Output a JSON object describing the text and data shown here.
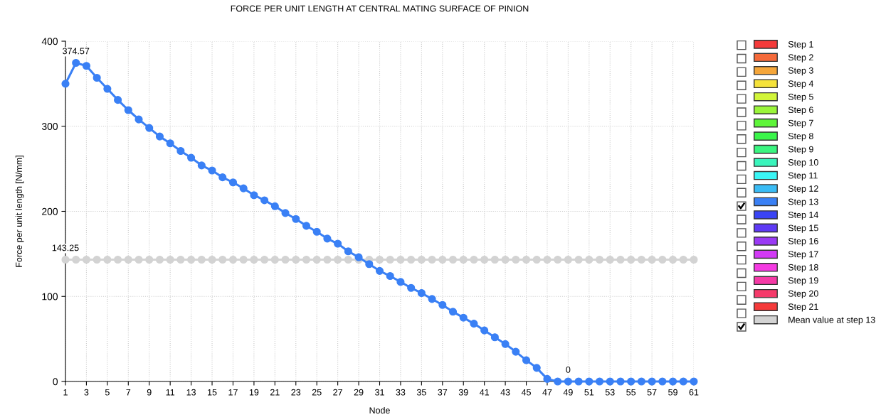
{
  "chart_data": {
    "type": "line",
    "title": "FORCE PER UNIT LENGTH AT CENTRAL MATING SURFACE OF PINION",
    "xlabel": "Node",
    "ylabel": "Force per unit length [N/mm]",
    "x": [
      1,
      2,
      3,
      4,
      5,
      6,
      7,
      8,
      9,
      10,
      11,
      12,
      13,
      14,
      15,
      16,
      17,
      18,
      19,
      20,
      21,
      22,
      23,
      24,
      25,
      26,
      27,
      28,
      29,
      30,
      31,
      32,
      33,
      34,
      35,
      36,
      37,
      38,
      39,
      40,
      41,
      42,
      43,
      44,
      45,
      46,
      47,
      48,
      49,
      50,
      51,
      52,
      53,
      54,
      55,
      56,
      57,
      58,
      59,
      60,
      61
    ],
    "series": [
      {
        "name": "Step 1",
        "color": "#f53a3a",
        "values": [
          null,
          null,
          null,
          null,
          null,
          null,
          null,
          null,
          null,
          null,
          null,
          null,
          null,
          null,
          null,
          null,
          null,
          null,
          null,
          null,
          null,
          null,
          null,
          null,
          null,
          null,
          null,
          null,
          null,
          null,
          null,
          null,
          null,
          null,
          null,
          null,
          null,
          null,
          null,
          null,
          null,
          null,
          null,
          null,
          null,
          null,
          null,
          null,
          null,
          null,
          null,
          null,
          null,
          null,
          null,
          null,
          null,
          null,
          null,
          null,
          null
        ]
      },
      {
        "name": "Step 2",
        "color": "#f56a3a",
        "values": [
          null,
          null,
          null,
          null,
          null,
          null,
          null,
          null,
          null,
          null,
          null,
          null,
          null,
          null,
          null,
          null,
          null,
          null,
          null,
          null,
          null,
          null,
          null,
          null,
          null,
          null,
          null,
          null,
          null,
          null,
          null,
          null,
          null,
          null,
          null,
          null,
          null,
          null,
          null,
          null,
          null,
          null,
          null,
          null,
          null,
          null,
          null,
          null,
          null,
          null,
          null,
          null,
          null,
          null,
          null,
          null,
          null,
          null,
          null,
          null,
          null
        ]
      },
      {
        "name": "Step 3",
        "color": "#f5a63a",
        "values": [
          null,
          null,
          null,
          null,
          null,
          null,
          null,
          null,
          null,
          null,
          null,
          null,
          null,
          null,
          null,
          null,
          null,
          null,
          null,
          null,
          null,
          null,
          null,
          null,
          null,
          null,
          null,
          null,
          null,
          null,
          null,
          null,
          null,
          null,
          null,
          null,
          null,
          null,
          null,
          null,
          null,
          null,
          null,
          null,
          null,
          null,
          null,
          null,
          null,
          null,
          null,
          null,
          null,
          null,
          null,
          null,
          null,
          null,
          null,
          null,
          null
        ]
      },
      {
        "name": "Step 4",
        "color": "#f5e23a",
        "values": [
          null,
          null,
          null,
          null,
          null,
          null,
          null,
          null,
          null,
          null,
          null,
          null,
          null,
          null,
          null,
          null,
          null,
          null,
          null,
          null,
          null,
          null,
          null,
          null,
          null,
          null,
          null,
          null,
          null,
          null,
          null,
          null,
          null,
          null,
          null,
          null,
          null,
          null,
          null,
          null,
          null,
          null,
          null,
          null,
          null,
          null,
          null,
          null,
          null,
          null,
          null,
          null,
          null,
          null,
          null,
          null,
          null,
          null,
          null,
          null,
          null
        ]
      },
      {
        "name": "Step 5",
        "color": "#d2f53a",
        "values": [
          null,
          null,
          null,
          null,
          null,
          null,
          null,
          null,
          null,
          null,
          null,
          null,
          null,
          null,
          null,
          null,
          null,
          null,
          null,
          null,
          null,
          null,
          null,
          null,
          null,
          null,
          null,
          null,
          null,
          null,
          null,
          null,
          null,
          null,
          null,
          null,
          null,
          null,
          null,
          null,
          null,
          null,
          null,
          null,
          null,
          null,
          null,
          null,
          null,
          null,
          null,
          null,
          null,
          null,
          null,
          null,
          null,
          null,
          null,
          null,
          null
        ]
      },
      {
        "name": "Step 6",
        "color": "#9af53a",
        "values": [
          null,
          null,
          null,
          null,
          null,
          null,
          null,
          null,
          null,
          null,
          null,
          null,
          null,
          null,
          null,
          null,
          null,
          null,
          null,
          null,
          null,
          null,
          null,
          null,
          null,
          null,
          null,
          null,
          null,
          null,
          null,
          null,
          null,
          null,
          null,
          null,
          null,
          null,
          null,
          null,
          null,
          null,
          null,
          null,
          null,
          null,
          null,
          null,
          null,
          null,
          null,
          null,
          null,
          null,
          null,
          null,
          null,
          null,
          null,
          null,
          null
        ]
      },
      {
        "name": "Step 7",
        "color": "#5ef53a",
        "values": [
          null,
          null,
          null,
          null,
          null,
          null,
          null,
          null,
          null,
          null,
          null,
          null,
          null,
          null,
          null,
          null,
          null,
          null,
          null,
          null,
          null,
          null,
          null,
          null,
          null,
          null,
          null,
          null,
          null,
          null,
          null,
          null,
          null,
          null,
          null,
          null,
          null,
          null,
          null,
          null,
          null,
          null,
          null,
          null,
          null,
          null,
          null,
          null,
          null,
          null,
          null,
          null,
          null,
          null,
          null,
          null,
          null,
          null,
          null,
          null,
          null
        ]
      },
      {
        "name": "Step 8",
        "color": "#3af54a",
        "values": [
          null,
          null,
          null,
          null,
          null,
          null,
          null,
          null,
          null,
          null,
          null,
          null,
          null,
          null,
          null,
          null,
          null,
          null,
          null,
          null,
          null,
          null,
          null,
          null,
          null,
          null,
          null,
          null,
          null,
          null,
          null,
          null,
          null,
          null,
          null,
          null,
          null,
          null,
          null,
          null,
          null,
          null,
          null,
          null,
          null,
          null,
          null,
          null,
          null,
          null,
          null,
          null,
          null,
          null,
          null,
          null,
          null,
          null,
          null,
          null,
          null
        ]
      },
      {
        "name": "Step 9",
        "color": "#3af580",
        "values": [
          null,
          null,
          null,
          null,
          null,
          null,
          null,
          null,
          null,
          null,
          null,
          null,
          null,
          null,
          null,
          null,
          null,
          null,
          null,
          null,
          null,
          null,
          null,
          null,
          null,
          null,
          null,
          null,
          null,
          null,
          null,
          null,
          null,
          null,
          null,
          null,
          null,
          null,
          null,
          null,
          null,
          null,
          null,
          null,
          null,
          null,
          null,
          null,
          null,
          null,
          null,
          null,
          null,
          null,
          null,
          null,
          null,
          null,
          null,
          null,
          null
        ]
      },
      {
        "name": "Step 10",
        "color": "#3af5bc",
        "values": [
          null,
          null,
          null,
          null,
          null,
          null,
          null,
          null,
          null,
          null,
          null,
          null,
          null,
          null,
          null,
          null,
          null,
          null,
          null,
          null,
          null,
          null,
          null,
          null,
          null,
          null,
          null,
          null,
          null,
          null,
          null,
          null,
          null,
          null,
          null,
          null,
          null,
          null,
          null,
          null,
          null,
          null,
          null,
          null,
          null,
          null,
          null,
          null,
          null,
          null,
          null,
          null,
          null,
          null,
          null,
          null,
          null,
          null,
          null,
          null,
          null
        ]
      },
      {
        "name": "Step 11",
        "color": "#3af5f5",
        "values": [
          null,
          null,
          null,
          null,
          null,
          null,
          null,
          null,
          null,
          null,
          null,
          null,
          null,
          null,
          null,
          null,
          null,
          null,
          null,
          null,
          null,
          null,
          null,
          null,
          null,
          null,
          null,
          null,
          null,
          null,
          null,
          null,
          null,
          null,
          null,
          null,
          null,
          null,
          null,
          null,
          null,
          null,
          null,
          null,
          null,
          null,
          null,
          null,
          null,
          null,
          null,
          null,
          null,
          null,
          null,
          null,
          null,
          null,
          null,
          null,
          null
        ]
      },
      {
        "name": "Step 12",
        "color": "#3abcf5",
        "values": [
          null,
          null,
          null,
          null,
          null,
          null,
          null,
          null,
          null,
          null,
          null,
          null,
          null,
          null,
          null,
          null,
          null,
          null,
          null,
          null,
          null,
          null,
          null,
          null,
          null,
          null,
          null,
          null,
          null,
          null,
          null,
          null,
          null,
          null,
          null,
          null,
          null,
          null,
          null,
          null,
          null,
          null,
          null,
          null,
          null,
          null,
          null,
          null,
          null,
          null,
          null,
          null,
          null,
          null,
          null,
          null,
          null,
          null,
          null,
          null,
          null
        ]
      },
      {
        "name": "Step 13",
        "color": "#3a80f5",
        "values": [
          350,
          374.57,
          371,
          357,
          344,
          331,
          319,
          308,
          298,
          288,
          280,
          271,
          263,
          254,
          248,
          240,
          234,
          227,
          219,
          213,
          206,
          198,
          191,
          183,
          176,
          168,
          162,
          153,
          146,
          138,
          130,
          124,
          117,
          110,
          104,
          97,
          90,
          82,
          75,
          68,
          60,
          52,
          44,
          35,
          25,
          16,
          3,
          0,
          0,
          0,
          0,
          0,
          0,
          0,
          0,
          0,
          0,
          0,
          0,
          0,
          0
        ]
      },
      {
        "name": "Step 14",
        "color": "#3a44f5",
        "values": [
          null,
          null,
          null,
          null,
          null,
          null,
          null,
          null,
          null,
          null,
          null,
          null,
          null,
          null,
          null,
          null,
          null,
          null,
          null,
          null,
          null,
          null,
          null,
          null,
          null,
          null,
          null,
          null,
          null,
          null,
          null,
          null,
          null,
          null,
          null,
          null,
          null,
          null,
          null,
          null,
          null,
          null,
          null,
          null,
          null,
          null,
          null,
          null,
          null,
          null,
          null,
          null,
          null,
          null,
          null,
          null,
          null,
          null,
          null,
          null,
          null
        ]
      },
      {
        "name": "Step 15",
        "color": "#5e3af5",
        "values": [
          null,
          null,
          null,
          null,
          null,
          null,
          null,
          null,
          null,
          null,
          null,
          null,
          null,
          null,
          null,
          null,
          null,
          null,
          null,
          null,
          null,
          null,
          null,
          null,
          null,
          null,
          null,
          null,
          null,
          null,
          null,
          null,
          null,
          null,
          null,
          null,
          null,
          null,
          null,
          null,
          null,
          null,
          null,
          null,
          null,
          null,
          null,
          null,
          null,
          null,
          null,
          null,
          null,
          null,
          null,
          null,
          null,
          null,
          null,
          null,
          null
        ]
      },
      {
        "name": "Step 16",
        "color": "#9a3af5",
        "values": [
          null,
          null,
          null,
          null,
          null,
          null,
          null,
          null,
          null,
          null,
          null,
          null,
          null,
          null,
          null,
          null,
          null,
          null,
          null,
          null,
          null,
          null,
          null,
          null,
          null,
          null,
          null,
          null,
          null,
          null,
          null,
          null,
          null,
          null,
          null,
          null,
          null,
          null,
          null,
          null,
          null,
          null,
          null,
          null,
          null,
          null,
          null,
          null,
          null,
          null,
          null,
          null,
          null,
          null,
          null,
          null,
          null,
          null,
          null,
          null,
          null
        ]
      },
      {
        "name": "Step 17",
        "color": "#d23af5",
        "values": [
          null,
          null,
          null,
          null,
          null,
          null,
          null,
          null,
          null,
          null,
          null,
          null,
          null,
          null,
          null,
          null,
          null,
          null,
          null,
          null,
          null,
          null,
          null,
          null,
          null,
          null,
          null,
          null,
          null,
          null,
          null,
          null,
          null,
          null,
          null,
          null,
          null,
          null,
          null,
          null,
          null,
          null,
          null,
          null,
          null,
          null,
          null,
          null,
          null,
          null,
          null,
          null,
          null,
          null,
          null,
          null,
          null,
          null,
          null,
          null,
          null
        ]
      },
      {
        "name": "Step 18",
        "color": "#f53ae2",
        "values": [
          null,
          null,
          null,
          null,
          null,
          null,
          null,
          null,
          null,
          null,
          null,
          null,
          null,
          null,
          null,
          null,
          null,
          null,
          null,
          null,
          null,
          null,
          null,
          null,
          null,
          null,
          null,
          null,
          null,
          null,
          null,
          null,
          null,
          null,
          null,
          null,
          null,
          null,
          null,
          null,
          null,
          null,
          null,
          null,
          null,
          null,
          null,
          null,
          null,
          null,
          null,
          null,
          null,
          null,
          null,
          null,
          null,
          null,
          null,
          null,
          null
        ]
      },
      {
        "name": "Step 19",
        "color": "#f53aa6",
        "values": [
          null,
          null,
          null,
          null,
          null,
          null,
          null,
          null,
          null,
          null,
          null,
          null,
          null,
          null,
          null,
          null,
          null,
          null,
          null,
          null,
          null,
          null,
          null,
          null,
          null,
          null,
          null,
          null,
          null,
          null,
          null,
          null,
          null,
          null,
          null,
          null,
          null,
          null,
          null,
          null,
          null,
          null,
          null,
          null,
          null,
          null,
          null,
          null,
          null,
          null,
          null,
          null,
          null,
          null,
          null,
          null,
          null,
          null,
          null,
          null,
          null
        ]
      },
      {
        "name": "Step 20",
        "color": "#f53a6a",
        "values": [
          null,
          null,
          null,
          null,
          null,
          null,
          null,
          null,
          null,
          null,
          null,
          null,
          null,
          null,
          null,
          null,
          null,
          null,
          null,
          null,
          null,
          null,
          null,
          null,
          null,
          null,
          null,
          null,
          null,
          null,
          null,
          null,
          null,
          null,
          null,
          null,
          null,
          null,
          null,
          null,
          null,
          null,
          null,
          null,
          null,
          null,
          null,
          null,
          null,
          null,
          null,
          null,
          null,
          null,
          null,
          null,
          null,
          null,
          null,
          null,
          null
        ]
      },
      {
        "name": "Step 21",
        "color": "#f53a3a",
        "values": [
          null,
          null,
          null,
          null,
          null,
          null,
          null,
          null,
          null,
          null,
          null,
          null,
          null,
          null,
          null,
          null,
          null,
          null,
          null,
          null,
          null,
          null,
          null,
          null,
          null,
          null,
          null,
          null,
          null,
          null,
          null,
          null,
          null,
          null,
          null,
          null,
          null,
          null,
          null,
          null,
          null,
          null,
          null,
          null,
          null,
          null,
          null,
          null,
          null,
          null,
          null,
          null,
          null,
          null,
          null,
          null,
          null,
          null,
          null,
          null,
          null
        ]
      },
      {
        "name": "Mean value at step 13",
        "color": "#d3d3d3",
        "values": [
          143.25,
          143.25,
          143.25,
          143.25,
          143.25,
          143.25,
          143.25,
          143.25,
          143.25,
          143.25,
          143.25,
          143.25,
          143.25,
          143.25,
          143.25,
          143.25,
          143.25,
          143.25,
          143.25,
          143.25,
          143.25,
          143.25,
          143.25,
          143.25,
          143.25,
          143.25,
          143.25,
          143.25,
          143.25,
          143.25,
          143.25,
          143.25,
          143.25,
          143.25,
          143.25,
          143.25,
          143.25,
          143.25,
          143.25,
          143.25,
          143.25,
          143.25,
          143.25,
          143.25,
          143.25,
          143.25,
          143.25,
          143.25,
          143.25,
          143.25,
          143.25,
          143.25,
          143.25,
          143.25,
          143.25,
          143.25,
          143.25,
          143.25,
          143.25,
          143.25,
          143.25
        ]
      }
    ],
    "annotations": [
      {
        "text": "374.57",
        "x": 2,
        "y": 374.57
      },
      {
        "text": "143.25",
        "x": 1,
        "y": 143.25
      },
      {
        "text": "0",
        "x": 49,
        "y": 0
      }
    ],
    "xlim": [
      1,
      61
    ],
    "xticks": [
      1,
      3,
      5,
      7,
      9,
      11,
      13,
      15,
      17,
      19,
      21,
      23,
      25,
      27,
      29,
      31,
      33,
      35,
      37,
      39,
      41,
      43,
      45,
      47,
      49,
      51,
      53,
      55,
      57,
      59,
      61
    ],
    "ylim": [
      0,
      400
    ],
    "yticks": [
      0,
      100,
      200,
      300,
      400
    ],
    "grid": true,
    "legend": "right",
    "marker": "circle",
    "line_style": "solid"
  }
}
